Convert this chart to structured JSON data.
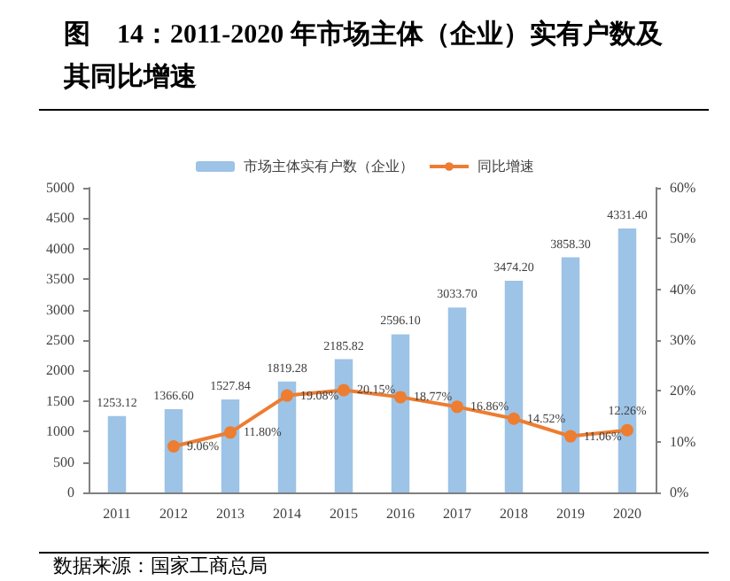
{
  "chart_data": {
    "type": "bar",
    "title": "图　14：2011-2020 年市场主体（企业）实有户数及其同比增速",
    "categories": [
      "2011",
      "2012",
      "2013",
      "2014",
      "2015",
      "2016",
      "2017",
      "2018",
      "2019",
      "2020"
    ],
    "series": [
      {
        "name": "市场主体实有户数（企业）",
        "color": "#9dc3e6",
        "values": [
          1253.12,
          1366.6,
          1527.84,
          1819.28,
          2185.82,
          2596.1,
          3033.7,
          3474.2,
          3858.3,
          4331.4
        ],
        "value_labels": [
          "1253.12",
          "1366.60",
          "1527.84",
          "1819.28",
          "2185.82",
          "2596.10",
          "3033.70",
          "3474.20",
          "3858.30",
          "4331.40"
        ]
      },
      {
        "name": "同比增速",
        "type": "line",
        "axis": "y2",
        "color": "#ed7d31",
        "marker": "circle",
        "values": [
          null,
          9.06,
          11.8,
          19.08,
          20.15,
          18.77,
          16.86,
          14.52,
          11.06,
          12.26
        ],
        "value_labels": [
          null,
          "9.06%",
          "11.80%",
          "19.08%",
          "20.15%",
          "18.77%",
          "16.86%",
          "14.52%",
          "11.06%",
          "12.26%"
        ]
      }
    ],
    "ylim": [
      0,
      5000
    ],
    "yticks": [
      0,
      500,
      1000,
      1500,
      2000,
      2500,
      3000,
      3500,
      4000,
      4500,
      5000
    ],
    "y2lim": [
      0,
      60
    ],
    "y2ticks": [
      {
        "value": 0,
        "label": "0%"
      },
      {
        "value": 10,
        "label": "10%"
      },
      {
        "value": 20,
        "label": "20%"
      },
      {
        "value": 30,
        "label": "30%"
      },
      {
        "value": 40,
        "label": "40%"
      },
      {
        "value": 50,
        "label": "50%"
      },
      {
        "value": 60,
        "label": "60%"
      }
    ],
    "grid": false,
    "legend": "top",
    "annotations": [
      "数据来源：国家工商总局"
    ]
  }
}
